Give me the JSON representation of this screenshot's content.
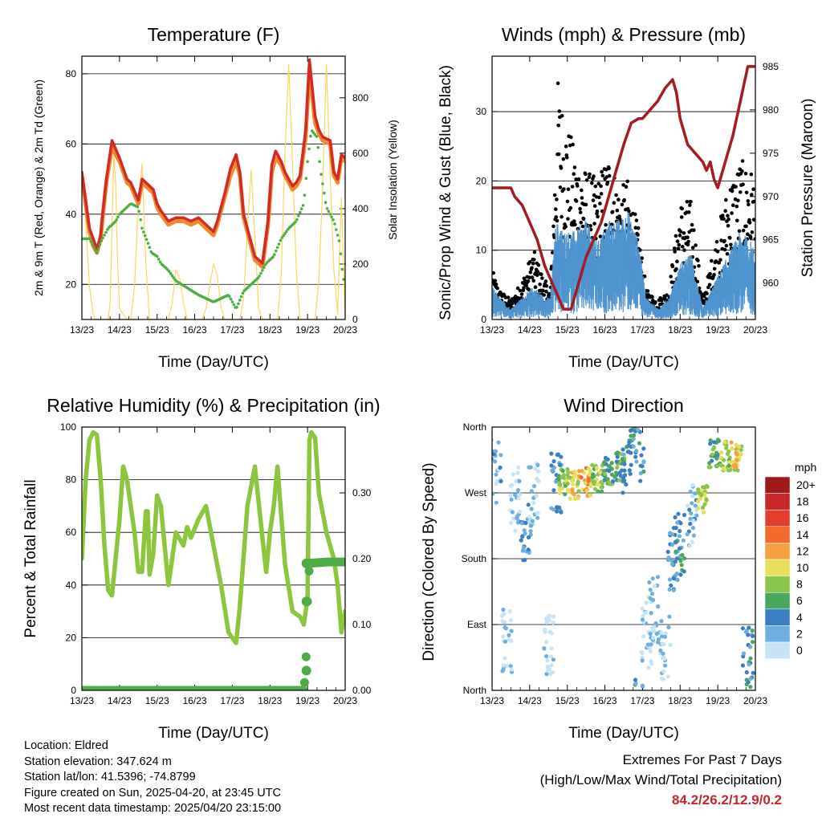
{
  "chart_data": [
    {
      "type": "line",
      "title": "Temperature (F)",
      "xlabel": "Time (Day/UTC)",
      "ylabel": "2m & 9m T (Red, Orange) & 2m Td (Green)",
      "y2label": "Solar Insolation (Yellow)",
      "x_ticks": [
        "13/23",
        "14/23",
        "15/23",
        "16/23",
        "17/23",
        "18/23",
        "19/23",
        "20/23"
      ],
      "x_range_days": [
        0,
        7
      ],
      "ylim": [
        10,
        85
      ],
      "y_ticks": [
        20,
        40,
        60,
        80
      ],
      "y2lim": [
        0,
        950
      ],
      "y2_ticks": [
        0,
        200,
        400,
        600,
        800
      ],
      "grid": true,
      "colors": {
        "temp_2m": "#d42a26",
        "temp_9m": "#f08a2c",
        "dewpoint": "#4bb040",
        "solar": "#f7d85a"
      },
      "series": [
        {
          "name": "2m T",
          "x": [
            0,
            0.1,
            0.2,
            0.3,
            0.4,
            0.5,
            0.55,
            0.65,
            0.8,
            1.0,
            1.2,
            1.3,
            1.5,
            1.6,
            1.7,
            1.9,
            2.0,
            2.1,
            2.3,
            2.5,
            2.7,
            2.9,
            3.1,
            3.3,
            3.5,
            3.6,
            3.8,
            3.95,
            4.1,
            4.2,
            4.3,
            4.6,
            4.8,
            4.95,
            5.05,
            5.15,
            5.3,
            5.4,
            5.6,
            5.7,
            5.8,
            5.95,
            6.05,
            6.2,
            6.3,
            6.4,
            6.6,
            6.7,
            6.8,
            6.9,
            7.0
          ],
          "y": [
            52,
            44,
            36,
            33,
            30,
            34,
            40,
            50,
            61,
            56,
            50,
            49,
            44,
            50,
            49,
            47,
            43,
            41,
            38,
            39,
            39,
            38,
            39,
            37,
            35,
            38,
            46,
            53,
            57,
            52,
            40,
            28,
            26,
            38,
            54,
            58,
            55,
            52,
            48,
            49,
            51,
            64,
            84,
            68,
            64,
            62,
            61,
            52,
            50,
            57,
            56
          ]
        },
        {
          "name": "9m T",
          "x": [
            0,
            0.1,
            0.2,
            0.3,
            0.4,
            0.5,
            0.55,
            0.65,
            0.8,
            1.0,
            1.2,
            1.3,
            1.5,
            1.6,
            1.7,
            1.9,
            2.0,
            2.1,
            2.3,
            2.5,
            2.7,
            2.9,
            3.1,
            3.3,
            3.5,
            3.6,
            3.8,
            3.95,
            4.1,
            4.2,
            4.3,
            4.6,
            4.8,
            4.95,
            5.05,
            5.15,
            5.3,
            5.4,
            5.6,
            5.7,
            5.8,
            5.95,
            6.05,
            6.2,
            6.3,
            6.4,
            6.6,
            6.7,
            6.8,
            6.9,
            7.0
          ],
          "y": [
            51,
            43,
            35,
            31,
            29,
            33,
            39,
            49,
            59,
            55,
            49,
            48,
            43,
            49,
            48,
            46,
            42,
            40,
            37,
            38,
            38,
            37,
            38,
            36,
            34,
            37,
            45,
            51,
            55,
            51,
            39,
            27,
            25,
            37,
            52,
            56,
            54,
            51,
            47,
            48,
            50,
            62,
            81,
            66,
            63,
            61,
            60,
            51,
            49,
            56,
            55
          ]
        },
        {
          "name": "2m Td",
          "x": [
            0,
            0.2,
            0.4,
            0.5,
            0.7,
            0.9,
            1.0,
            1.1,
            1.3,
            1.5,
            1.6,
            1.75,
            1.85,
            2.0,
            2.1,
            2.3,
            2.5,
            2.8,
            3.1,
            3.3,
            3.5,
            3.7,
            3.9,
            4.0,
            4.1,
            4.3,
            4.5,
            4.7,
            4.9,
            5.1,
            5.3,
            5.5,
            5.7,
            5.9,
            6.0,
            6.1,
            6.25,
            6.35,
            6.5,
            6.7,
            6.85,
            6.95,
            7.0
          ],
          "y": [
            33,
            33,
            29,
            32,
            36,
            38,
            40,
            41,
            43,
            42,
            36,
            32,
            29,
            28,
            26,
            24,
            21,
            19,
            17,
            16,
            15,
            16,
            17,
            15,
            13,
            18,
            20,
            22,
            26,
            28,
            33,
            36,
            38,
            43,
            55,
            64,
            62,
            52,
            42,
            38,
            32,
            21,
            23
          ]
        },
        {
          "name": "Solar Insolation",
          "axis": "y2",
          "x": [
            0,
            0.05,
            0.1,
            0.2,
            0.3,
            0.35,
            0.4,
            0.7,
            0.75,
            0.8,
            0.85,
            0.9,
            0.95,
            1.0,
            1.2,
            1.3,
            1.4,
            1.5,
            1.6,
            1.7,
            1.8,
            2.2,
            2.3,
            2.4,
            2.5,
            2.6,
            2.7,
            2.8,
            3.2,
            3.3,
            3.4,
            3.5,
            3.6,
            3.7,
            3.8,
            4.2,
            4.3,
            4.4,
            4.5,
            4.6,
            4.7,
            4.8,
            5.2,
            5.3,
            5.4,
            5.5,
            5.6,
            5.7,
            5.8,
            6.2,
            6.3,
            6.4,
            6.5,
            6.6,
            6.7,
            6.8,
            6.9,
            7.0
          ],
          "y": [
            520,
            500,
            360,
            120,
            20,
            0,
            0,
            0,
            60,
            320,
            600,
            480,
            200,
            40,
            0,
            0,
            120,
            420,
            560,
            200,
            0,
            0,
            0,
            60,
            180,
            150,
            60,
            0,
            0,
            40,
            120,
            200,
            160,
            40,
            0,
            0,
            80,
            320,
            540,
            300,
            40,
            0,
            0,
            160,
            600,
            920,
            560,
            180,
            0,
            0,
            140,
            480,
            920,
            520,
            180,
            20,
            440,
            0
          ]
        }
      ]
    },
    {
      "type": "scatter",
      "title": "Winds (mph) & Pressure (mb)",
      "xlabel": "Time (Day/UTC)",
      "ylabel": "Sonic/Prop Wind & Gust (Blue, Black)",
      "y2label": "Station Pressure (Maroon)",
      "x_ticks": [
        "13/23",
        "14/23",
        "15/23",
        "16/23",
        "17/23",
        "18/23",
        "19/23",
        "20/23"
      ],
      "x_range_days": [
        0,
        7
      ],
      "ylim": [
        0,
        38
      ],
      "y_ticks": [
        0,
        10,
        20,
        30
      ],
      "y2lim": [
        955.8,
        986.2
      ],
      "y2_ticks": [
        960,
        965,
        970,
        975,
        980,
        985
      ],
      "grid": true,
      "colors": {
        "wind": "#4f94cf",
        "gust": "#000000",
        "pressure": "#a31c22"
      },
      "series": [
        {
          "name": "Sonic/Prop Wind",
          "x": [
            0,
            0.2,
            0.5,
            0.8,
            1.1,
            1.4,
            1.55,
            1.7,
            1.9,
            2.2,
            2.5,
            2.8,
            3.1,
            3.4,
            3.6,
            3.9,
            4.1,
            4.4,
            4.7,
            5.0,
            5.3,
            5.6,
            6.0,
            6.3,
            6.6,
            6.9,
            7.0
          ],
          "y": [
            3,
            2,
            1,
            2,
            3,
            2,
            2,
            9,
            8,
            8,
            9,
            7,
            9,
            9,
            10,
            7,
            2,
            1,
            2,
            5,
            6,
            1,
            4,
            6,
            8,
            7,
            6
          ]
        },
        {
          "name": "Gust",
          "x": [
            0,
            0.2,
            0.5,
            0.8,
            1.1,
            1.4,
            1.55,
            1.75,
            1.9,
            2.2,
            2.5,
            2.8,
            3.1,
            3.4,
            3.6,
            3.9,
            4.1,
            4.4,
            4.7,
            5.0,
            5.3,
            5.6,
            6.0,
            6.3,
            6.6,
            6.9,
            7.0
          ],
          "y": [
            5,
            3,
            2,
            4,
            7,
            4,
            3,
            24,
            21,
            17,
            15,
            14,
            17,
            13,
            14,
            9,
            3,
            2,
            3,
            12,
            12,
            2,
            9,
            14,
            16,
            15,
            14
          ]
        },
        {
          "name": "Station Pressure",
          "axis": "y2",
          "x": [
            0,
            0.1,
            0.3,
            0.5,
            0.6,
            0.8,
            1.0,
            1.2,
            1.4,
            1.5,
            1.6,
            1.7,
            1.9,
            2.1,
            2.3,
            2.5,
            2.7,
            2.9,
            3.1,
            3.3,
            3.5,
            3.7,
            3.9,
            4.0,
            4.2,
            4.4,
            4.6,
            4.8,
            4.9,
            5.0,
            5.2,
            5.4,
            5.6,
            5.7,
            5.8,
            5.9,
            6.0,
            6.2,
            6.4,
            6.6,
            6.8,
            6.9,
            7.0
          ],
          "y": [
            971,
            971,
            971,
            971,
            970,
            969,
            967,
            965,
            962,
            961,
            960,
            959,
            957,
            957,
            960,
            963,
            965,
            967,
            970,
            973,
            976,
            978.5,
            979,
            979,
            980,
            981,
            982.5,
            983.5,
            982,
            979,
            976,
            975,
            974,
            973,
            974,
            972,
            971,
            974,
            977,
            981,
            985,
            985,
            985
          ]
        }
      ]
    },
    {
      "type": "line",
      "title": "Relative Humidity (%) & Precipitation (in)",
      "xlabel": "Time (Day/UTC)",
      "ylabel": "Percent & Total Rainfall",
      "x_ticks": [
        "13/23",
        "14/23",
        "15/23",
        "16/23",
        "17/23",
        "18/23",
        "19/23",
        "20/23"
      ],
      "x_range_days": [
        0,
        7
      ],
      "ylim": [
        0,
        100
      ],
      "y_ticks": [
        0,
        20,
        40,
        60,
        80,
        100
      ],
      "y2lim": [
        0,
        0.4
      ],
      "y2_ticks": [
        "0.00",
        "0.10",
        "0.20",
        "0.30"
      ],
      "grid": true,
      "colors": {
        "rh": "#8cc63f",
        "precip": "#4cae44"
      },
      "series": [
        {
          "name": "Relative Humidity",
          "x": [
            0,
            0.1,
            0.2,
            0.3,
            0.4,
            0.5,
            0.6,
            0.7,
            0.8,
            1.0,
            1.1,
            1.2,
            1.4,
            1.5,
            1.6,
            1.7,
            1.75,
            1.8,
            1.9,
            2.0,
            2.1,
            2.2,
            2.3,
            2.5,
            2.7,
            2.8,
            2.9,
            3.1,
            3.3,
            3.5,
            3.7,
            3.9,
            4.1,
            4.2,
            4.4,
            4.6,
            4.8,
            4.9,
            5.0,
            5.1,
            5.2,
            5.4,
            5.6,
            5.8,
            5.9,
            6.0,
            6.05,
            6.1,
            6.2,
            6.3,
            6.5,
            6.7,
            6.8,
            6.9,
            7.0
          ],
          "y": [
            50,
            80,
            95,
            98,
            97,
            80,
            55,
            38,
            36,
            65,
            85,
            80,
            60,
            45,
            45,
            68,
            68,
            44,
            52,
            74,
            70,
            55,
            40,
            60,
            55,
            62,
            58,
            65,
            70,
            55,
            40,
            22,
            18,
            32,
            70,
            85,
            58,
            45,
            60,
            70,
            85,
            48,
            30,
            28,
            25,
            35,
            95,
            98,
            96,
            75,
            60,
            50,
            40,
            22,
            30
          ]
        },
        {
          "name": "Total Rainfall",
          "axis": "y2",
          "x": [
            0,
            1,
            2,
            3,
            4,
            5,
            5.9,
            5.95,
            6.0,
            6.05,
            6.5,
            7.0
          ],
          "y": [
            0,
            0,
            0,
            0,
            0,
            0,
            0,
            0.03,
            0.135,
            0.193,
            0.195,
            0.195
          ]
        }
      ]
    },
    {
      "type": "scatter",
      "title": "Wind Direction",
      "xlabel": "Time (Day/UTC)",
      "ylabel": "Direction (Colored By Speed)",
      "x_ticks": [
        "13/23",
        "14/23",
        "15/23",
        "16/23",
        "17/23",
        "18/23",
        "19/23",
        "20/23"
      ],
      "x_range_days": [
        0,
        7
      ],
      "y_ticks": [
        "North",
        "West",
        "South",
        "East",
        "North"
      ],
      "ylim_degrees": [
        0,
        360
      ],
      "grid": true,
      "legend": {
        "title": "mph",
        "labels": [
          "20+",
          "18",
          "16",
          "14",
          "12",
          "10",
          "8",
          "6",
          "4",
          "2",
          "0"
        ],
        "colors": [
          "#a01a1c",
          "#c9262a",
          "#e33f31",
          "#f26c2d",
          "#f7a142",
          "#e6df5a",
          "#8cc54e",
          "#4aa85e",
          "#3a7fc2",
          "#6db0e0",
          "#c6e4f6"
        ],
        "placement": "right"
      },
      "series": [
        {
          "name": "Direction",
          "x": [
            0.1,
            0.4,
            0.6,
            0.9,
            1.1,
            1.5,
            1.7,
            1.9,
            2.2,
            2.5,
            2.8,
            3.1,
            3.4,
            3.6,
            3.9,
            4.1,
            4.3,
            4.6,
            4.8,
            5.0,
            5.3,
            5.6,
            5.9,
            6.2,
            6.5,
            6.8
          ],
          "y": [
            300,
            70,
            260,
            220,
            270,
            60,
            280,
            285,
            280,
            285,
            290,
            300,
            305,
            315,
            330,
            75,
            110,
            60,
            180,
            200,
            240,
            260,
            325,
            320,
            320,
            45
          ],
          "speed": [
            2,
            1,
            1,
            3,
            1,
            0,
            3,
            8,
            10,
            12,
            8,
            6,
            6,
            4,
            4,
            1,
            1,
            1,
            3,
            4,
            2,
            9,
            6,
            8,
            10,
            4
          ]
        }
      ]
    }
  ],
  "info": {
    "location": "Location: Eldred",
    "elevation": "Station elevation: 347.624 m",
    "latlon": "Station lat/lon: 41.5396; -74.8799",
    "created": "Figure created on Sun, 2025-04-20, at 23:45 UTC",
    "recent": "Most recent data timestamp: 2025/04/20 23:15:00"
  },
  "extremes": {
    "title": "Extremes For Past 7 Days",
    "subtitle": "(High/Low/Max Wind/Total Precipitation)",
    "values": "84.2/26.2/12.9/0.2"
  }
}
